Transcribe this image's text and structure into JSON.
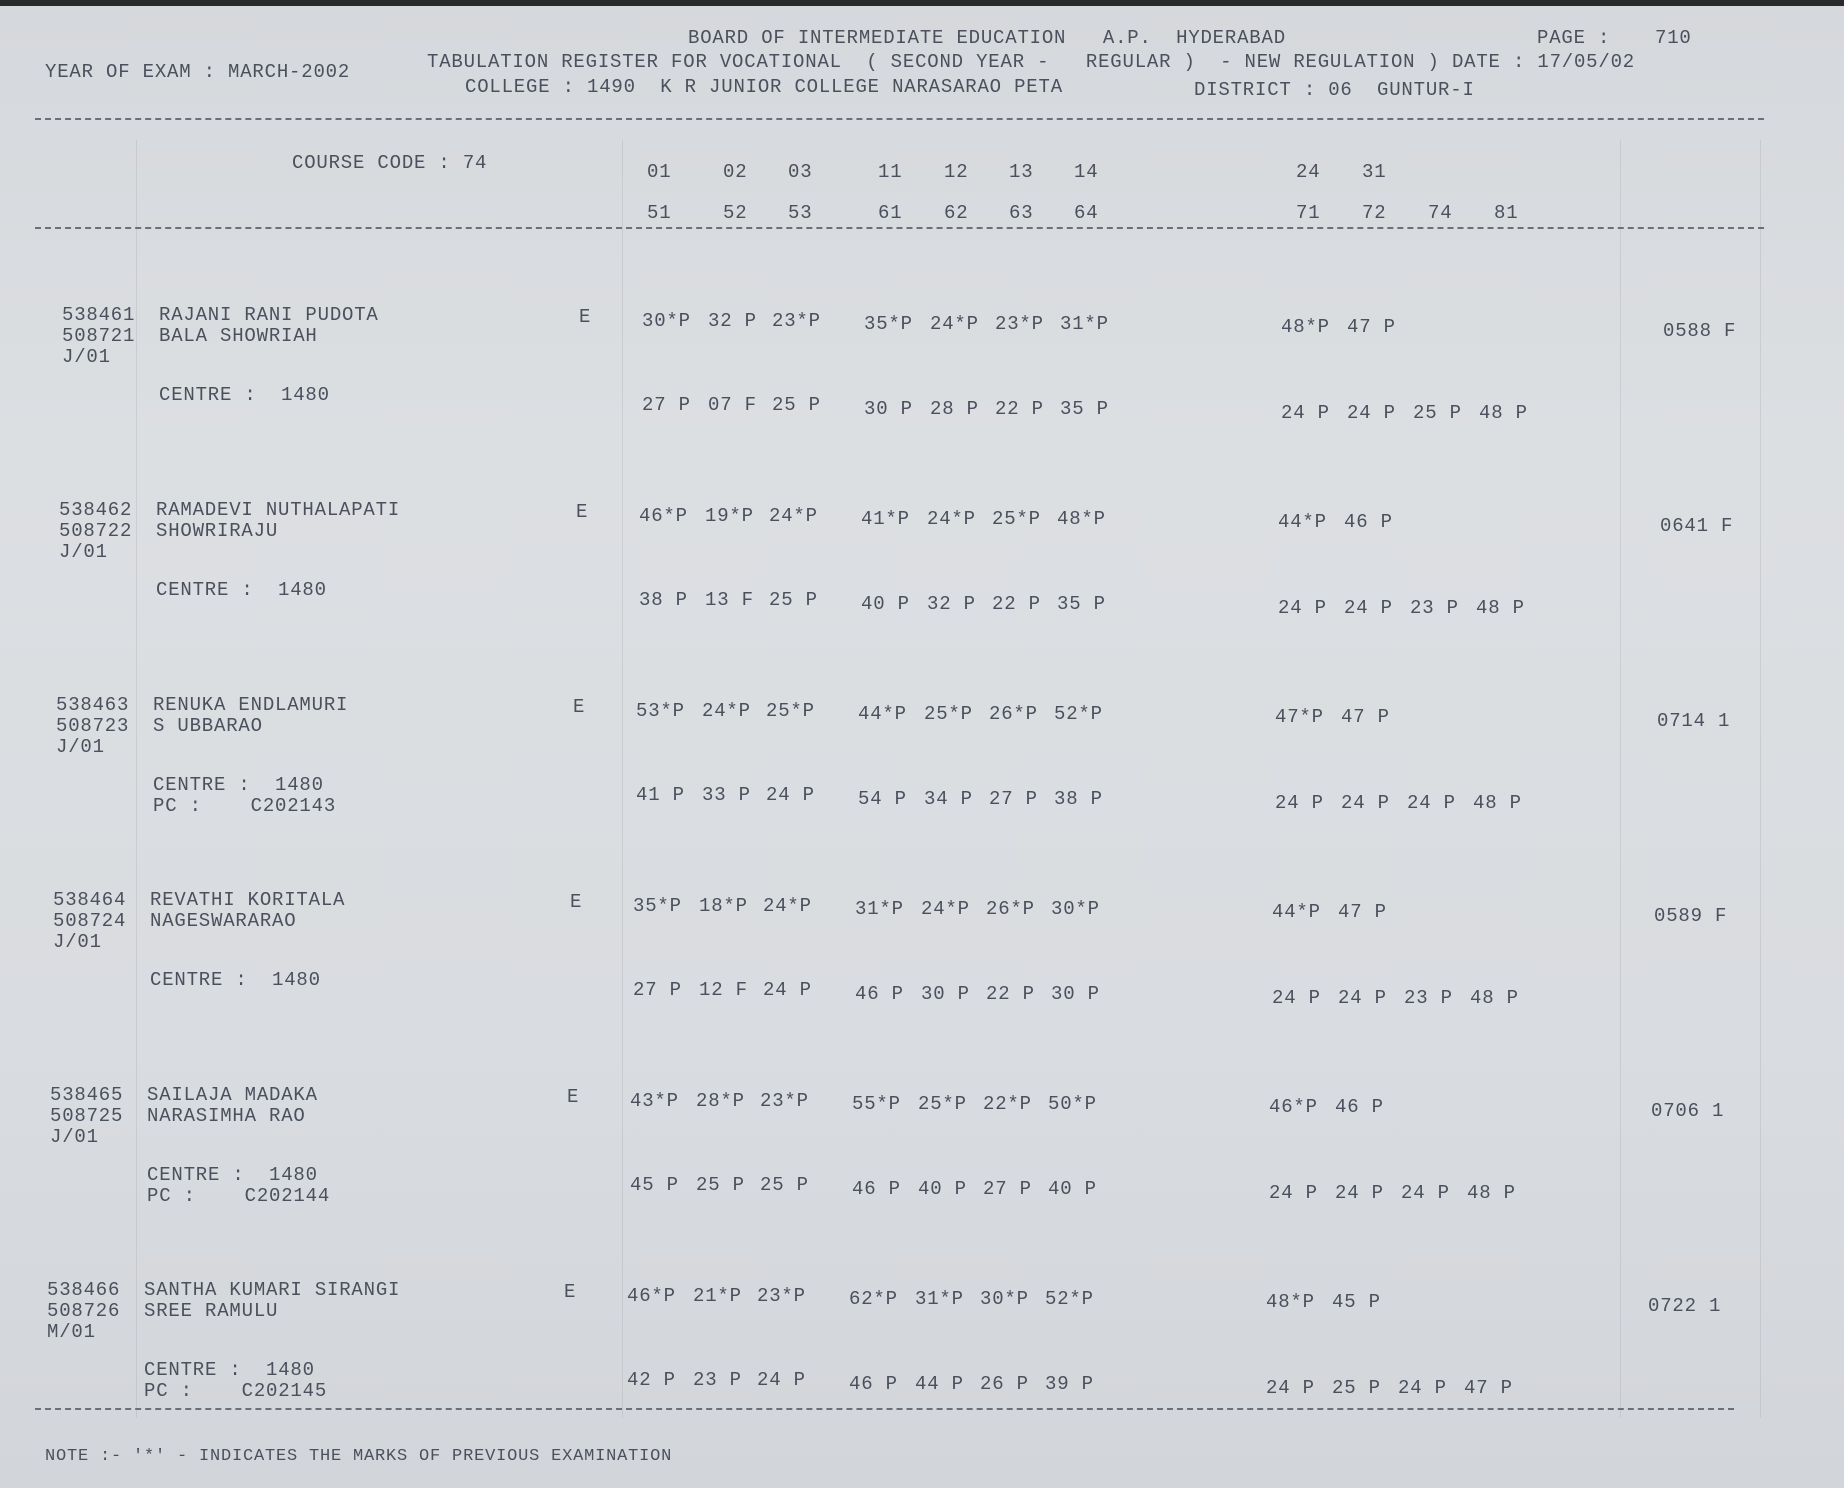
{
  "header": {
    "year_of_exam": "YEAR OF EXAM : MARCH-2002",
    "board": "BOARD OF INTERMEDIATE EDUCATION   A.P.  HYDERABAD",
    "register": "TABULATION REGISTER FOR VOCATIONAL  ( SECOND YEAR -   REGULAR )  - NEW REGULATION ) DATE : 17/05/02",
    "college": "COLLEGE : 1490  K R JUNIOR COLLEGE NARASARAO PETA",
    "district": "DISTRICT : 06  GUNTUR-I",
    "page_label": "PAGE :",
    "page_number": "710"
  },
  "columns": {
    "course_code": "COURSE CODE : 74",
    "row1": [
      "01",
      "02",
      "03",
      "11",
      "12",
      "13",
      "14",
      "24",
      "31"
    ],
    "row2": [
      "51",
      "52",
      "53",
      "61",
      "62",
      "63",
      "64",
      "71",
      "72",
      "74",
      "81"
    ]
  },
  "records": [
    {
      "roll": "538461",
      "roll2": "508721",
      "group": "J/01",
      "name": "RAJANI RANI PUDOTA",
      "father": "BALA SHOWRIAH",
      "medium": "E",
      "prev": [
        [
          "30*P",
          "32 P",
          "23*P"
        ],
        [
          "35*P",
          "24*P",
          "23*P",
          "31*P"
        ],
        [
          "48*P",
          "47 P"
        ]
      ],
      "centre": "CENTRE :  1480",
      "pc": "",
      "curr": [
        [
          "27 P",
          "07 F",
          "25 P"
        ],
        [
          "30 P",
          "28 P",
          "22 P",
          "35 P"
        ],
        [
          "24 P",
          "24 P",
          "25 P",
          "48 P"
        ]
      ],
      "total": "0588 F"
    },
    {
      "roll": "538462",
      "roll2": "508722",
      "group": "J/01",
      "name": "RAMADEVI NUTHALAPATI",
      "father": "SHOWRIRAJU",
      "medium": "E",
      "prev": [
        [
          "46*P",
          "19*P",
          "24*P"
        ],
        [
          "41*P",
          "24*P",
          "25*P",
          "48*P"
        ],
        [
          "44*P",
          "46 P"
        ]
      ],
      "centre": "CENTRE :  1480",
      "pc": "",
      "curr": [
        [
          "38 P",
          "13 F",
          "25 P"
        ],
        [
          "40 P",
          "32 P",
          "22 P",
          "35 P"
        ],
        [
          "24 P",
          "24 P",
          "23 P",
          "48 P"
        ]
      ],
      "total": "0641 F"
    },
    {
      "roll": "538463",
      "roll2": "508723",
      "group": "J/01",
      "name": "RENUKA ENDLAMURI",
      "father": "S UBBARAO",
      "medium": "E",
      "prev": [
        [
          "53*P",
          "24*P",
          "25*P"
        ],
        [
          "44*P",
          "25*P",
          "26*P",
          "52*P"
        ],
        [
          "47*P",
          "47 P"
        ]
      ],
      "centre": "CENTRE :  1480",
      "pc": "PC :    C202143",
      "curr": [
        [
          "41 P",
          "33 P",
          "24 P"
        ],
        [
          "54 P",
          "34 P",
          "27 P",
          "38 P"
        ],
        [
          "24 P",
          "24 P",
          "24 P",
          "48 P"
        ]
      ],
      "total": "0714 1"
    },
    {
      "roll": "538464",
      "roll2": "508724",
      "group": "J/01",
      "name": "REVATHI KORITALA",
      "father": "NAGESWARARAO",
      "medium": "E",
      "prev": [
        [
          "35*P",
          "18*P",
          "24*P"
        ],
        [
          "31*P",
          "24*P",
          "26*P",
          "30*P"
        ],
        [
          "44*P",
          "47 P"
        ]
      ],
      "centre": "CENTRE :  1480",
      "pc": "",
      "curr": [
        [
          "27 P",
          "12 F",
          "24 P"
        ],
        [
          "46 P",
          "30 P",
          "22 P",
          "30 P"
        ],
        [
          "24 P",
          "24 P",
          "23 P",
          "48 P"
        ]
      ],
      "total": "0589 F"
    },
    {
      "roll": "538465",
      "roll2": "508725",
      "group": "J/01",
      "name": "SAILAJA MADAKA",
      "father": "NARASIMHA RAO",
      "medium": "E",
      "prev": [
        [
          "43*P",
          "28*P",
          "23*P"
        ],
        [
          "55*P",
          "25*P",
          "22*P",
          "50*P"
        ],
        [
          "46*P",
          "46 P"
        ]
      ],
      "centre": "CENTRE :  1480",
      "pc": "PC :    C202144",
      "curr": [
        [
          "45 P",
          "25 P",
          "25 P"
        ],
        [
          "46 P",
          "40 P",
          "27 P",
          "40 P"
        ],
        [
          "24 P",
          "24 P",
          "24 P",
          "48 P"
        ]
      ],
      "total": "0706 1"
    },
    {
      "roll": "538466",
      "roll2": "508726",
      "group": "M/01",
      "name": "SANTHA KUMARI SIRANGI",
      "father": "SREE RAMULU",
      "medium": "E",
      "prev": [
        [
          "46*P",
          "21*P",
          "23*P"
        ],
        [
          "62*P",
          "31*P",
          "30*P",
          "52*P"
        ],
        [
          "48*P",
          "45 P"
        ]
      ],
      "centre": "CENTRE :  1480",
      "pc": "PC :    C202145",
      "curr": [
        [
          "42 P",
          "23 P",
          "24 P"
        ],
        [
          "46 P",
          "44 P",
          "26 P",
          "39 P"
        ],
        [
          "24 P",
          "25 P",
          "24 P",
          "47 P"
        ]
      ],
      "total": "0722 1"
    }
  ],
  "note": "NOTE :- '*' - INDICATES THE MARKS OF PREVIOUS EXAMINATION",
  "colors": {
    "paper": "#d9dce0",
    "ink": "#4b505c"
  }
}
